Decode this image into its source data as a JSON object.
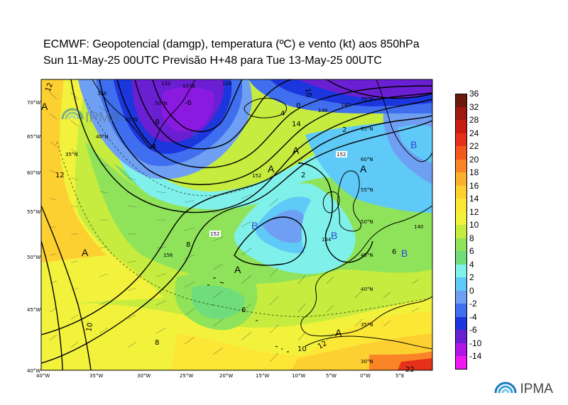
{
  "title": {
    "line1": "ECMWF:  Geopotencial (damgp), temperatura (ºC) e vento (kt) aos 850hPa",
    "line2": "Sun 11-May-25 00UTC Previsão H+48 para Tue 13-May-25 00UTC"
  },
  "brand": {
    "logo_text": "IPMA"
  },
  "colorbar": {
    "labels": [
      "36",
      "32",
      "28",
      "24",
      "22",
      "20",
      "18",
      "16",
      "14",
      "12",
      "10",
      "8",
      "6",
      "4",
      "2",
      "0",
      "-2",
      "-4",
      "-6",
      "-10",
      "-14"
    ],
    "colors": [
      "#6b1a0c",
      "#9c1a10",
      "#c81e12",
      "#e6311a",
      "#f5581c",
      "#fa8526",
      "#fcb12d",
      "#fdd031",
      "#fde736",
      "#f2f23c",
      "#c6ec3f",
      "#8fe35a",
      "#6fdd7b",
      "#7ff0ea",
      "#5fc9f7",
      "#6f9ff3",
      "#3f6fee",
      "#1c36dd",
      "#6a1fd2",
      "#b016e8",
      "#ef1af2"
    ]
  },
  "map": {
    "lat_labels": [
      "70°W",
      "65°W",
      "60°W",
      "55°W",
      "50°W",
      "45°W",
      "40°W"
    ],
    "lon_labels": [
      "40°W",
      "35°W",
      "30°W",
      "25°W",
      "20°W",
      "15°W",
      "10°W",
      "5°W",
      "0°W",
      "5°E"
    ],
    "inner_grid_labels": [
      "55°N",
      "50°N",
      "45°N",
      "40°N",
      "35°N",
      "70°N",
      "65°N",
      "60°N",
      "55°N",
      "50°N",
      "45°N",
      "40°N",
      "35°N",
      "30°N"
    ],
    "pressure_centers": [
      {
        "letter": "B",
        "color": "#3048d8"
      },
      {
        "letter": "B",
        "color": "#3048d8"
      },
      {
        "letter": "B",
        "color": "#3048d8"
      },
      {
        "letter": "B",
        "color": "#3048d8"
      },
      {
        "letter": "B",
        "color": "#3048d8"
      },
      {
        "letter": "A",
        "color": "#000000"
      },
      {
        "letter": "A",
        "color": "#000000"
      },
      {
        "letter": "A",
        "color": "#000000"
      },
      {
        "letter": "A",
        "color": "#000000"
      },
      {
        "letter": "A",
        "color": "#000000"
      },
      {
        "letter": "A",
        "color": "#000000"
      },
      {
        "letter": "A",
        "color": "#000000"
      }
    ],
    "contour_labels": [
      "152",
      "152",
      "156",
      "144",
      "136",
      "128",
      "132",
      "140",
      "148",
      "152",
      "140"
    ],
    "isotherm_labels": [
      "12",
      "12",
      "10",
      "10",
      "8",
      "8",
      "6",
      "6",
      "4",
      "2",
      "2",
      "0",
      "-4",
      "-6",
      "-8",
      "10",
      "12",
      "14",
      "22"
    ]
  }
}
